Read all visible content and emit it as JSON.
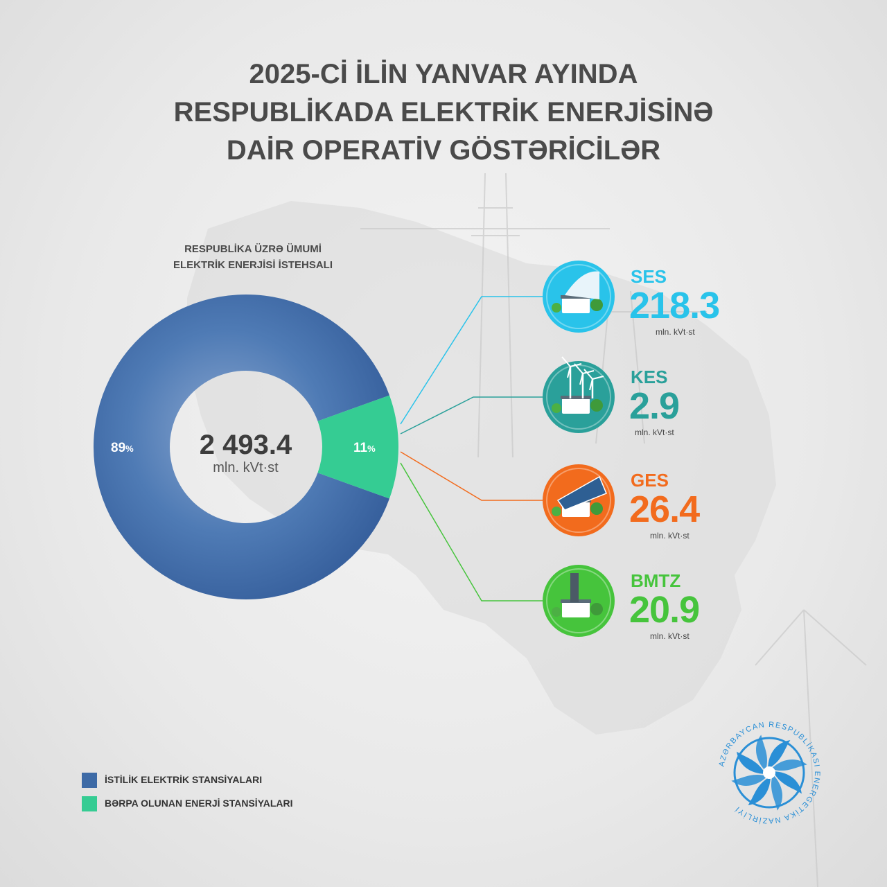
{
  "title": {
    "line1": "2025-Cİ İLİN YANVAR AYINDA",
    "line2": "RESPUBLİKADA ELEKTRİK ENERJİSİNƏ",
    "line3": "DAİR OPERATİV GÖSTƏRİCİLƏR"
  },
  "chart_data": {
    "type": "pie",
    "title": "RESPUBLİKA ÜZRƏ ÜMUMİ ELEKTRİK ENERJİSİ İSTEHSALI",
    "subtitle_line1": "RESPUBLİKA ÜZRƏ ÜMUMİ",
    "subtitle_line2": "ELEKTRİK ENERJİSİ İSTEHSALI",
    "total": "2 493.4",
    "total_unit": "mln. kVt·st",
    "slices": [
      {
        "label": "İSTİLİK ELEKTRİK STANSİYALARI",
        "value": 89,
        "display": "89",
        "color": "#3d6aa6"
      },
      {
        "label": "BƏRPA OLUNAN ENERJİ STANSİYALARI",
        "value": 11,
        "display": "11",
        "color": "#35cc93"
      }
    ],
    "percent_sign": "%",
    "breakdown": [
      {
        "name": "SES",
        "value": "218.3",
        "unit": "mln. kVt·st",
        "color": "#29c3ea",
        "icon": "hydro-dam-icon"
      },
      {
        "name": "KES",
        "value": "2.9",
        "unit": "mln. kVt·st",
        "color": "#2aa09a",
        "icon": "wind-turbine-icon"
      },
      {
        "name": "GES",
        "value": "26.4",
        "unit": "mln. kVt·st",
        "color": "#f26b1d",
        "icon": "solar-panel-icon"
      },
      {
        "name": "BMTZ",
        "value": "20.9",
        "unit": "mln. kVt·st",
        "color": "#46c43c",
        "icon": "waste-plant-icon"
      }
    ]
  },
  "logo": {
    "text": "AZƏRBAYCAN RESPUBLİKASI ENERGETİKA NAZİRLİYİ",
    "color": "#2a8fd6"
  }
}
